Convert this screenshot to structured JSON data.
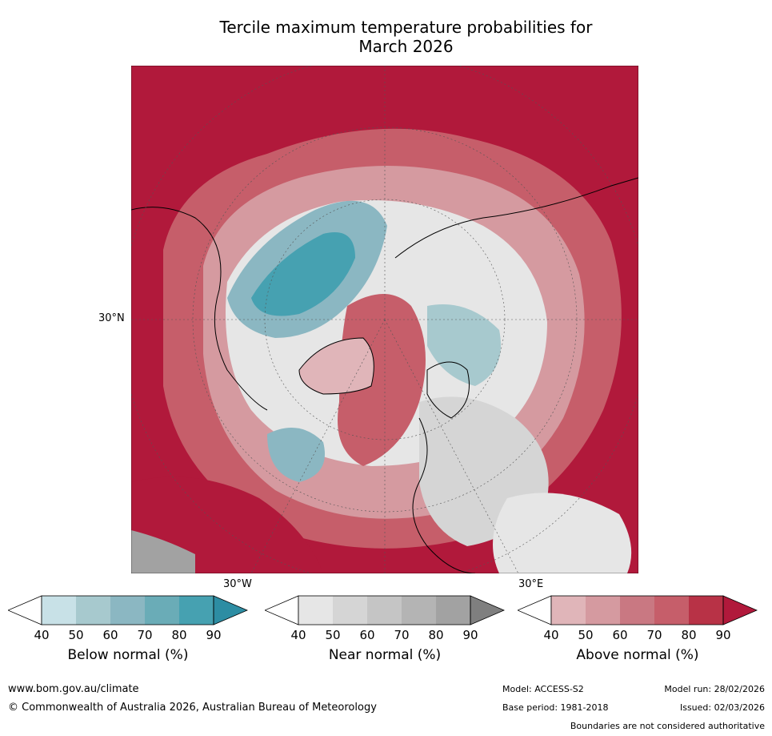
{
  "title_line1": "Tercile maximum temperature probabilities for",
  "title_line2": "March 2026",
  "map": {
    "lat_label": "30°N",
    "lon_label_left": "30°W",
    "lon_label_right": "30°E"
  },
  "legend": {
    "ticks": [
      "40",
      "50",
      "60",
      "70",
      "80",
      "90"
    ],
    "below": {
      "label": "Below normal (%)",
      "colors": [
        "#ffffff",
        "#c8e1e7",
        "#a7c9ce",
        "#8bb7c2",
        "#6aacb7",
        "#46a1b1",
        "#2d8da3"
      ]
    },
    "near": {
      "label": "Near normal (%)",
      "colors": [
        "#ffffff",
        "#e6e6e6",
        "#d5d5d5",
        "#c5c5c5",
        "#b4b4b4",
        "#a2a2a2",
        "#7f7f7f"
      ]
    },
    "above": {
      "label": "Above normal (%)",
      "colors": [
        "#ffffff",
        "#e0b5b9",
        "#d59aa0",
        "#c97882",
        "#c65e6a",
        "#b83246",
        "#b1193b"
      ]
    }
  },
  "footer": {
    "website": "www.bom.gov.au/climate",
    "copyright": "© Commonwealth of Australia 2026, Australian Bureau of Meteorology",
    "model": "Model: ACCESS-S2",
    "model_run": "Model run: 28/02/2026",
    "base_period": "Base period: 1981-2018",
    "issued": "Issued: 02/03/2026",
    "disclaimer": "Boundaries are not considered authoritative"
  }
}
